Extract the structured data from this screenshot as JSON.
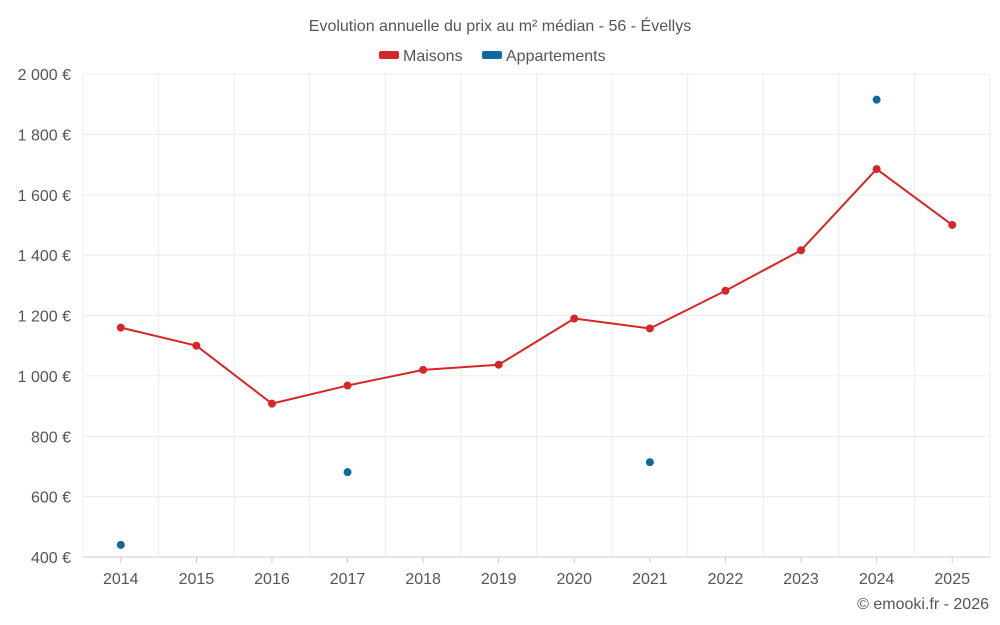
{
  "chart_data": {
    "type": "line",
    "title": "Evolution annuelle du prix au m² médian - 56 - Évellys",
    "categories": [
      "2014",
      "2015",
      "2016",
      "2017",
      "2018",
      "2019",
      "2020",
      "2021",
      "2022",
      "2023",
      "2024",
      "2025"
    ],
    "y_ticks": [
      "400 €",
      "600 €",
      "800 €",
      "1 000 €",
      "1 200 €",
      "1 400 €",
      "1 600 €",
      "1 800 €",
      "2 000 €"
    ],
    "ylim": [
      400,
      2000
    ],
    "grid": true,
    "legend_position": "top-center",
    "series": [
      {
        "name": "Maisons",
        "color": "#d62728",
        "mode": "line+markers",
        "values": [
          1160,
          1100,
          908,
          968,
          1020,
          1037,
          1190,
          1157,
          1282,
          1416,
          1685,
          1500
        ]
      },
      {
        "name": "Appartements",
        "color": "#0b6aa2",
        "mode": "markers",
        "values": [
          440,
          null,
          null,
          681,
          null,
          null,
          null,
          714,
          null,
          null,
          1915,
          null
        ]
      }
    ]
  },
  "credit": "© emooki.fr - 2026"
}
